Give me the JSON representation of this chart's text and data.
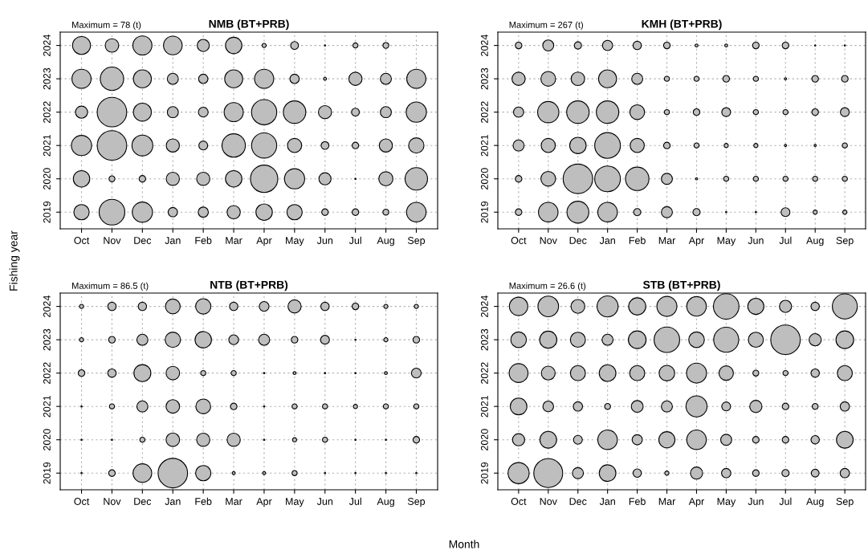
{
  "chart_data": [
    {
      "type": "bubble",
      "title": "NMB (BT+PRB)",
      "annotations": [
        "Maximum = 78 (t)"
      ],
      "xlabel": "Month",
      "ylabel": "Fishing year",
      "grid": true,
      "categories": [
        "Oct",
        "Nov",
        "Dec",
        "Jan",
        "Feb",
        "Mar",
        "Apr",
        "May",
        "Jun",
        "Jul",
        "Aug",
        "Sep"
      ],
      "ylim": [
        2018.5,
        2024.4
      ],
      "yticks": [
        2019,
        2020,
        2021,
        2022,
        2023,
        2024
      ],
      "series": [
        {
          "color": "#bebebe",
          "values": [
            2024,
            2024,
            2024,
            2024,
            2024,
            2024,
            2024,
            2024,
            2024,
            2024,
            2024,
            null
          ],
          "sizes": [
            0.37,
            0.21,
            0.42,
            0.4,
            0.17,
            0.31,
            0.02,
            0.07,
            0.002,
            0.03,
            0.04,
            null
          ]
        },
        {
          "color": "#bebebe",
          "values": [
            2023,
            2023,
            2023,
            2023,
            2023,
            2023,
            2023,
            2023,
            2023,
            2023,
            2023,
            2023
          ],
          "sizes": [
            0.42,
            0.63,
            0.37,
            0.14,
            0.1,
            0.37,
            0.42,
            0.1,
            0.01,
            0.2,
            0.14,
            0.42
          ]
        },
        {
          "color": "#bebebe",
          "values": [
            2022,
            2022,
            2022,
            2022,
            2022,
            2022,
            2022,
            2022,
            2022,
            2022,
            2022,
            2022
          ],
          "sizes": [
            0.17,
            1,
            0.37,
            0.14,
            0.11,
            0.42,
            0.73,
            0.58,
            0.2,
            0.07,
            0.14,
            0.47
          ]
        },
        {
          "color": "#bebebe",
          "values": [
            2021,
            2021,
            2021,
            2021,
            2021,
            2021,
            2021,
            2021,
            2021,
            2021,
            2021,
            2021
          ],
          "sizes": [
            0.47,
            1,
            0.5,
            0.2,
            0.09,
            0.63,
            0.73,
            0.23,
            0.07,
            0.05,
            0.2,
            0.27
          ]
        },
        {
          "color": "#bebebe",
          "values": [
            2020,
            2020,
            2020,
            2020,
            2020,
            2020,
            2020,
            2020,
            2020,
            2020,
            2020,
            2020
          ],
          "sizes": [
            0.31,
            0.04,
            0.05,
            0.2,
            0.2,
            0.31,
            0.86,
            0.47,
            0.17,
            0.002,
            0.23,
            0.58
          ]
        },
        {
          "color": "#bebebe",
          "values": [
            2019,
            2019,
            2019,
            2019,
            2019,
            2019,
            2019,
            2019,
            2019,
            2019,
            2019,
            2019
          ],
          "sizes": [
            0.27,
            0.76,
            0.47,
            0.1,
            0.12,
            0.2,
            0.31,
            0.27,
            0.05,
            0.05,
            0.04,
            0.44
          ]
        }
      ]
    },
    {
      "type": "bubble",
      "title": "KMH (BT+PRB)",
      "annotations": [
        "Maximum = 267 (t)"
      ],
      "grid": true,
      "categories": [
        "Oct",
        "Nov",
        "Dec",
        "Jan",
        "Feb",
        "Mar",
        "Apr",
        "May",
        "Jun",
        "Jul",
        "Aug",
        "Sep"
      ],
      "ylim": [
        2018.5,
        2024.4
      ],
      "yticks": [
        2019,
        2020,
        2021,
        2022,
        2023,
        2024
      ],
      "series": [
        {
          "color": "#bebebe",
          "values": [
            2024,
            2024,
            2024,
            2024,
            2024,
            2024,
            2024,
            2024,
            2024,
            2024,
            2024,
            2024
          ],
          "sizes": [
            0.05,
            0.14,
            0.06,
            0.12,
            0.08,
            0.05,
            0.01,
            0.01,
            0.05,
            0.05,
            0.002,
            0.002
          ]
        },
        {
          "color": "#bebebe",
          "values": [
            2023,
            2023,
            2023,
            2023,
            2023,
            2023,
            2023,
            2023,
            2023,
            2023,
            2023,
            2023
          ],
          "sizes": [
            0.2,
            0.25,
            0.21,
            0.37,
            0.14,
            0.03,
            0.03,
            0.05,
            0.03,
            0.005,
            0.05,
            0.05
          ]
        },
        {
          "color": "#bebebe",
          "values": [
            2022,
            2022,
            2022,
            2022,
            2022,
            2022,
            2022,
            2022,
            2022,
            2022,
            2022,
            2022
          ],
          "sizes": [
            0.12,
            0.52,
            0.58,
            0.58,
            0.25,
            0.03,
            0.05,
            0.09,
            0.03,
            0.03,
            0.05,
            0.09
          ]
        },
        {
          "color": "#bebebe",
          "values": [
            2021,
            2021,
            2021,
            2021,
            2021,
            2021,
            2021,
            2021,
            2021,
            2021,
            2021,
            2021
          ],
          "sizes": [
            0.14,
            0.23,
            0.31,
            0.76,
            0.23,
            0.05,
            0.03,
            0.02,
            0.02,
            0.005,
            0.005,
            0.03
          ]
        },
        {
          "color": "#bebebe",
          "values": [
            2020,
            2020,
            2020,
            2020,
            2020,
            2020,
            2020,
            2020,
            2020,
            2020,
            2020,
            2020
          ],
          "sizes": [
            0.05,
            0.25,
            1,
            0.76,
            0.63,
            0.14,
            0.005,
            0.03,
            0.03,
            0.03,
            0.03,
            0.03
          ]
        },
        {
          "color": "#bebebe",
          "values": [
            2019,
            2019,
            2019,
            2019,
            2019,
            2019,
            2019,
            2019,
            2019,
            2019,
            2019,
            2019
          ],
          "sizes": [
            0.05,
            0.44,
            0.55,
            0.44,
            0.06,
            0.14,
            0.06,
            0.002,
            0.002,
            0.09,
            0.02,
            0.02
          ]
        }
      ]
    },
    {
      "type": "bubble",
      "title": "NTB (BT+PRB)",
      "annotations": [
        "Maximum = 86.5 (t)"
      ],
      "grid": true,
      "categories": [
        "Oct",
        "Nov",
        "Dec",
        "Jan",
        "Feb",
        "Mar",
        "Apr",
        "May",
        "Jun",
        "Jul",
        "Aug",
        "Sep"
      ],
      "ylim": [
        2018.5,
        2024.4
      ],
      "yticks": [
        2019,
        2020,
        2021,
        2022,
        2023,
        2024
      ],
      "series": [
        {
          "color": "#bebebe",
          "values": [
            2024,
            2024,
            2024,
            2024,
            2024,
            2024,
            2024,
            2024,
            2024,
            2024,
            2024,
            2024
          ],
          "sizes": [
            0.02,
            0.08,
            0.08,
            0.25,
            0.27,
            0.08,
            0.11,
            0.2,
            0.08,
            0.05,
            0.02,
            0.02
          ]
        },
        {
          "color": "#bebebe",
          "values": [
            2023,
            2023,
            2023,
            2023,
            2023,
            2023,
            2023,
            2023,
            2023,
            2023,
            2023,
            2023
          ],
          "sizes": [
            0.02,
            0.05,
            0.14,
            0.27,
            0.31,
            0.11,
            0.14,
            0.05,
            0.09,
            0.002,
            0.02,
            0.05
          ]
        },
        {
          "color": "#bebebe",
          "values": [
            2022,
            2022,
            2022,
            2022,
            2022,
            2022,
            2022,
            2022,
            2022,
            2022,
            2022,
            2022
          ],
          "sizes": [
            0.05,
            0.08,
            0.33,
            0.21,
            0.03,
            0.03,
            0.002,
            0.01,
            0.002,
            0.002,
            0.01,
            0.11
          ]
        },
        {
          "color": "#bebebe",
          "values": [
            2021,
            2021,
            2021,
            2021,
            2021,
            2021,
            2021,
            2021,
            2021,
            2021,
            2021,
            2021
          ],
          "sizes": [
            0.002,
            0.03,
            0.14,
            0.21,
            0.25,
            0.05,
            0.002,
            0.03,
            0.03,
            0.02,
            0.03,
            0.03
          ]
        },
        {
          "color": "#bebebe",
          "values": [
            2020,
            2020,
            2020,
            2020,
            2020,
            2020,
            2020,
            2020,
            2020,
            2020,
            2020,
            2020
          ],
          "sizes": [
            0.002,
            0.002,
            0.03,
            0.21,
            0.2,
            0.2,
            0.002,
            0.02,
            0.03,
            0.002,
            0.002,
            0.05
          ]
        },
        {
          "color": "#bebebe",
          "values": [
            2019,
            2019,
            2019,
            2019,
            2019,
            2019,
            2019,
            2019,
            2019,
            2019,
            2019,
            2019
          ],
          "sizes": [
            0.002,
            0.05,
            0.4,
            1,
            0.27,
            0.01,
            0.01,
            0.03,
            0.002,
            0.002,
            0.002,
            0.002
          ]
        }
      ]
    },
    {
      "type": "bubble",
      "title": "STB (BT+PRB)",
      "annotations": [
        "Maximum = 26.6 (t)"
      ],
      "grid": true,
      "categories": [
        "Oct",
        "Nov",
        "Dec",
        "Jan",
        "Feb",
        "Mar",
        "Apr",
        "May",
        "Jun",
        "Jul",
        "Aug",
        "Sep"
      ],
      "ylim": [
        2018.5,
        2024.4
      ],
      "yticks": [
        2019,
        2020,
        2021,
        2022,
        2023,
        2024
      ],
      "series": [
        {
          "color": "#bebebe",
          "values": [
            2024,
            2024,
            2024,
            2024,
            2024,
            2024,
            2024,
            2024,
            2024,
            2024,
            2024,
            2024
          ],
          "sizes": [
            0.39,
            0.49,
            0.22,
            0.51,
            0.34,
            0.46,
            0.44,
            0.75,
            0.3,
            0.17,
            0.08,
            0.72
          ]
        },
        {
          "color": "#bebebe",
          "values": [
            2023,
            2023,
            2023,
            2023,
            2023,
            2023,
            2023,
            2023,
            2023,
            2023,
            2023,
            2023
          ],
          "sizes": [
            0.28,
            0.34,
            0.26,
            0.14,
            0.36,
            0.75,
            0.28,
            0.72,
            0.26,
            1,
            0.17,
            0.36
          ]
        },
        {
          "color": "#bebebe",
          "values": [
            2022,
            2022,
            2022,
            2022,
            2022,
            2022,
            2022,
            2022,
            2022,
            2022,
            2022,
            2022
          ],
          "sizes": [
            0.41,
            0.22,
            0.26,
            0.32,
            0.26,
            0.28,
            0.46,
            0.24,
            0.04,
            0.03,
            0.08,
            0.26
          ]
        },
        {
          "color": "#bebebe",
          "values": [
            2021,
            2021,
            2021,
            2021,
            2021,
            2021,
            2021,
            2021,
            2021,
            2021,
            2021,
            2021
          ],
          "sizes": [
            0.32,
            0.13,
            0.1,
            0.04,
            0.16,
            0.14,
            0.51,
            0.09,
            0.17,
            0.05,
            0.04,
            0.1
          ]
        },
        {
          "color": "#bebebe",
          "values": [
            2020,
            2020,
            2020,
            2020,
            2020,
            2020,
            2020,
            2020,
            2020,
            2020,
            2020,
            2020
          ],
          "sizes": [
            0.17,
            0.32,
            0.09,
            0.44,
            0.12,
            0.3,
            0.44,
            0.14,
            0.05,
            0.05,
            0.08,
            0.32
          ]
        },
        {
          "color": "#bebebe",
          "values": [
            2019,
            2019,
            2019,
            2019,
            2019,
            2019,
            2019,
            2019,
            2019,
            2019,
            2019,
            2019
          ],
          "sizes": [
            0.51,
            0.96,
            0.14,
            0.32,
            0.08,
            0.02,
            0.17,
            0.1,
            0.05,
            0.06,
            0.07,
            0.1
          ]
        }
      ]
    }
  ]
}
